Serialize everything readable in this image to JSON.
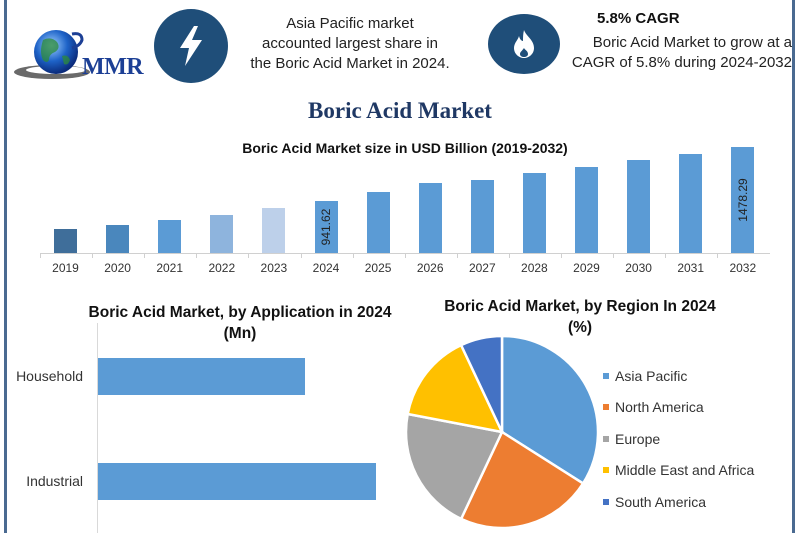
{
  "header": {
    "logo_text": "MMR",
    "info1": {
      "icon": "lightning-bolt-icon",
      "text": "Asia Pacific market accounted largest share in the Boric Acid Market in 2024."
    },
    "info2": {
      "icon": "flame-icon",
      "title": "5.8% CAGR",
      "text": "Boric Acid Market to grow at a CAGR of 5.8% during 2024-2032"
    }
  },
  "main_title": "Boric Acid Market",
  "colors": {
    "frame": "#4a6a91",
    "icon_bg": "#1f4e79",
    "title_navy": "#1f3864",
    "bar_blue": "#5b9bd5"
  },
  "chart_data": [
    {
      "type": "bar",
      "title": "Boric Acid Market size in USD Billion (2019-2032)",
      "xlabel": "",
      "ylabel": "",
      "categories": [
        "2019",
        "2020",
        "2021",
        "2022",
        "2023",
        "2024",
        "2025",
        "2026",
        "2027",
        "2028",
        "2029",
        "2030",
        "2031",
        "2032"
      ],
      "values": [
        660,
        700,
        750,
        800,
        870,
        941.62,
        1030,
        1120,
        1150,
        1220,
        1280,
        1350,
        1410,
        1478.29
      ],
      "data_labels": {
        "2024": "941.62",
        "2032": "1478.29"
      },
      "bar_colors": [
        "#3f6e9a",
        "#4a87bd",
        "#5b9bd5",
        "#8eb4dd",
        "#bdd0ea",
        "#5b9bd5",
        "#5b9bd5",
        "#5b9bd5",
        "#5b9bd5",
        "#5b9bd5",
        "#5b9bd5",
        "#5b9bd5",
        "#5b9bd5",
        "#5b9bd5"
      ],
      "grid": false,
      "legend": "none"
    },
    {
      "type": "bar",
      "orientation": "horizontal",
      "title": "Boric Acid Market, by Application in 2024 (Mn)",
      "title_lines": [
        "Boric Acid Market, by Application in 2024",
        "(Mn)"
      ],
      "categories": [
        "Household",
        "Industrial"
      ],
      "values": [
        207,
        278
      ],
      "color": "#5b9bd5",
      "grid": false,
      "legend": "none"
    },
    {
      "type": "pie",
      "title": "Boric Acid Market, by Region In 2024 (%)",
      "title_lines": [
        "Boric Acid Market, by Region In 2024",
        "(%)"
      ],
      "categories": [
        "Asia Pacific",
        "North America",
        "Europe",
        "Middle East and Africa",
        "South America"
      ],
      "values": [
        34,
        23,
        21,
        15,
        7
      ],
      "colors": [
        "#5b9bd5",
        "#ed7d31",
        "#a5a5a5",
        "#ffc000",
        "#4472c4"
      ],
      "legend": "right"
    }
  ]
}
